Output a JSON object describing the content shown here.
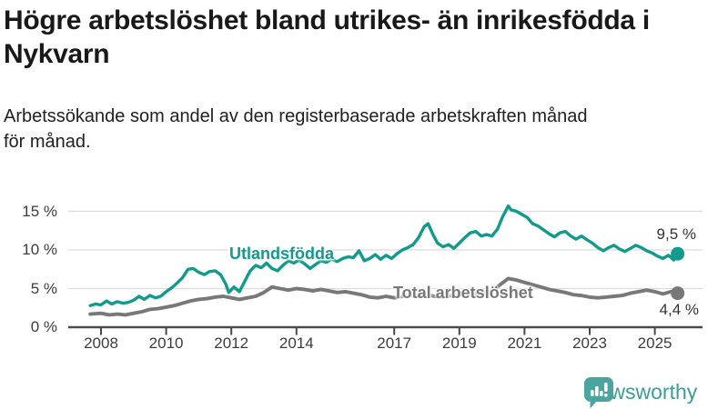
{
  "title": {
    "lines": [
      "Högre arbetslöshet bland utrikes- än inrikesfödda i",
      "Nykvarn"
    ]
  },
  "subtitle": {
    "lines": [
      "Arbetssökande som andel av den registerbaserade arbetskraften månad",
      "för månad."
    ]
  },
  "chart_data": {
    "type": "line",
    "title": "Högre arbetslöshet bland utrikes- än inrikesfödda i Nykvarn",
    "subtitle": "Arbetssökande som andel av den registerbaserade arbetskraften månad för månad.",
    "unit": "%",
    "grid": true,
    "ylim": [
      0,
      16.5
    ],
    "xlim": [
      2007.5,
      2026.2
    ],
    "y_ticks": [
      {
        "value": 0,
        "label": "0 %"
      },
      {
        "value": 5,
        "label": "5 %"
      },
      {
        "value": 10,
        "label": "10 %"
      },
      {
        "value": 15,
        "label": "15 %"
      }
    ],
    "x_ticks": [
      {
        "year": 2008,
        "label": "2008"
      },
      {
        "year": 2010,
        "label": "2010"
      },
      {
        "year": 2012,
        "label": "2012"
      },
      {
        "year": 2014,
        "label": "2014"
      },
      {
        "year": 2017,
        "label": "2017"
      },
      {
        "year": 2019,
        "label": "2019"
      },
      {
        "year": 2021,
        "label": "2021"
      },
      {
        "year": 2023,
        "label": "2023"
      },
      {
        "year": 2025,
        "label": "2025"
      }
    ],
    "series": [
      {
        "name": "Utlandsfödda",
        "color": "#129a8c",
        "line_width": 3.4,
        "end_value": 9.5,
        "end_label": "9,5 %",
        "points": [
          [
            2007.67,
            2.8
          ],
          [
            2007.83,
            3.0
          ],
          [
            2008.0,
            2.9
          ],
          [
            2008.17,
            3.4
          ],
          [
            2008.33,
            3.0
          ],
          [
            2008.5,
            3.3
          ],
          [
            2008.67,
            3.1
          ],
          [
            2008.83,
            3.2
          ],
          [
            2009.0,
            3.5
          ],
          [
            2009.17,
            4.0
          ],
          [
            2009.33,
            3.6
          ],
          [
            2009.5,
            4.1
          ],
          [
            2009.67,
            3.8
          ],
          [
            2009.83,
            4.0
          ],
          [
            2010.0,
            4.6
          ],
          [
            2010.17,
            5.1
          ],
          [
            2010.33,
            5.7
          ],
          [
            2010.5,
            6.4
          ],
          [
            2010.67,
            7.5
          ],
          [
            2010.83,
            7.6
          ],
          [
            2011.0,
            7.1
          ],
          [
            2011.17,
            6.8
          ],
          [
            2011.33,
            7.2
          ],
          [
            2011.5,
            7.3
          ],
          [
            2011.67,
            6.8
          ],
          [
            2011.83,
            5.6
          ],
          [
            2011.92,
            4.5
          ],
          [
            2012.08,
            5.2
          ],
          [
            2012.25,
            4.6
          ],
          [
            2012.42,
            6.0
          ],
          [
            2012.58,
            7.3
          ],
          [
            2012.75,
            8.0
          ],
          [
            2012.92,
            7.7
          ],
          [
            2013.08,
            8.3
          ],
          [
            2013.25,
            7.6
          ],
          [
            2013.42,
            7.3
          ],
          [
            2013.58,
            8.0
          ],
          [
            2013.75,
            8.6
          ],
          [
            2013.92,
            8.3
          ],
          [
            2014.08,
            8.7
          ],
          [
            2014.25,
            8.2
          ],
          [
            2014.42,
            7.6
          ],
          [
            2014.58,
            8.1
          ],
          [
            2014.75,
            8.6
          ],
          [
            2014.92,
            8.4
          ],
          [
            2015.08,
            8.8
          ],
          [
            2015.25,
            8.5
          ],
          [
            2015.42,
            8.9
          ],
          [
            2015.58,
            9.1
          ],
          [
            2015.75,
            9.0
          ],
          [
            2015.92,
            9.9
          ],
          [
            2016.08,
            8.6
          ],
          [
            2016.25,
            8.9
          ],
          [
            2016.42,
            9.4
          ],
          [
            2016.58,
            8.8
          ],
          [
            2016.75,
            9.3
          ],
          [
            2016.92,
            8.9
          ],
          [
            2017.08,
            9.5
          ],
          [
            2017.25,
            10.0
          ],
          [
            2017.42,
            10.3
          ],
          [
            2017.58,
            10.7
          ],
          [
            2017.75,
            11.6
          ],
          [
            2017.92,
            13.0
          ],
          [
            2018.04,
            13.4
          ],
          [
            2018.2,
            11.9
          ],
          [
            2018.33,
            10.9
          ],
          [
            2018.5,
            10.4
          ],
          [
            2018.67,
            10.7
          ],
          [
            2018.83,
            10.2
          ],
          [
            2019.0,
            10.9
          ],
          [
            2019.17,
            11.6
          ],
          [
            2019.33,
            12.2
          ],
          [
            2019.5,
            12.4
          ],
          [
            2019.67,
            11.8
          ],
          [
            2019.83,
            12.0
          ],
          [
            2020.0,
            11.8
          ],
          [
            2020.17,
            12.7
          ],
          [
            2020.33,
            14.3
          ],
          [
            2020.5,
            15.7
          ],
          [
            2020.58,
            15.2
          ],
          [
            2020.75,
            15.0
          ],
          [
            2020.92,
            14.6
          ],
          [
            2021.08,
            14.2
          ],
          [
            2021.25,
            13.4
          ],
          [
            2021.42,
            13.1
          ],
          [
            2021.58,
            12.6
          ],
          [
            2021.75,
            12.1
          ],
          [
            2021.92,
            11.7
          ],
          [
            2022.08,
            12.2
          ],
          [
            2022.25,
            12.4
          ],
          [
            2022.42,
            11.8
          ],
          [
            2022.58,
            11.4
          ],
          [
            2022.75,
            11.8
          ],
          [
            2022.92,
            11.3
          ],
          [
            2023.08,
            10.9
          ],
          [
            2023.25,
            10.3
          ],
          [
            2023.42,
            9.9
          ],
          [
            2023.58,
            10.3
          ],
          [
            2023.75,
            10.6
          ],
          [
            2023.92,
            10.1
          ],
          [
            2024.08,
            9.8
          ],
          [
            2024.25,
            10.2
          ],
          [
            2024.42,
            10.6
          ],
          [
            2024.58,
            10.3
          ],
          [
            2024.75,
            9.9
          ],
          [
            2024.92,
            9.6
          ],
          [
            2025.08,
            9.2
          ],
          [
            2025.25,
            8.9
          ],
          [
            2025.42,
            9.3
          ],
          [
            2025.58,
            8.7
          ],
          [
            2025.7,
            9.5
          ]
        ]
      },
      {
        "name": "Total arbetslöshet",
        "color": "#787878",
        "line_width": 3.9,
        "end_value": 4.4,
        "end_label": "4,4 %",
        "points": [
          [
            2007.67,
            1.7
          ],
          [
            2008.0,
            1.8
          ],
          [
            2008.25,
            1.6
          ],
          [
            2008.5,
            1.7
          ],
          [
            2008.75,
            1.6
          ],
          [
            2009.0,
            1.8
          ],
          [
            2009.25,
            2.0
          ],
          [
            2009.5,
            2.3
          ],
          [
            2009.75,
            2.4
          ],
          [
            2010.0,
            2.6
          ],
          [
            2010.25,
            2.8
          ],
          [
            2010.5,
            3.1
          ],
          [
            2010.75,
            3.4
          ],
          [
            2011.0,
            3.6
          ],
          [
            2011.25,
            3.7
          ],
          [
            2011.5,
            3.9
          ],
          [
            2011.75,
            4.0
          ],
          [
            2012.0,
            3.8
          ],
          [
            2012.25,
            3.6
          ],
          [
            2012.5,
            3.8
          ],
          [
            2012.75,
            4.0
          ],
          [
            2013.0,
            4.5
          ],
          [
            2013.25,
            5.2
          ],
          [
            2013.5,
            5.0
          ],
          [
            2013.75,
            4.8
          ],
          [
            2014.0,
            5.0
          ],
          [
            2014.25,
            4.9
          ],
          [
            2014.5,
            4.7
          ],
          [
            2014.75,
            4.9
          ],
          [
            2015.0,
            4.7
          ],
          [
            2015.25,
            4.5
          ],
          [
            2015.5,
            4.6
          ],
          [
            2015.75,
            4.4
          ],
          [
            2016.0,
            4.2
          ],
          [
            2016.25,
            3.9
          ],
          [
            2016.5,
            3.8
          ],
          [
            2016.75,
            4.0
          ],
          [
            2017.0,
            3.8
          ],
          [
            2017.25,
            4.0
          ],
          [
            2017.5,
            4.1
          ],
          [
            2017.75,
            4.0
          ],
          [
            2018.0,
            4.2
          ],
          [
            2018.25,
            4.0
          ],
          [
            2018.5,
            3.9
          ],
          [
            2018.75,
            4.1
          ],
          [
            2019.0,
            4.2
          ],
          [
            2019.25,
            4.4
          ],
          [
            2019.5,
            4.3
          ],
          [
            2019.75,
            4.5
          ],
          [
            2020.0,
            4.6
          ],
          [
            2020.25,
            5.5
          ],
          [
            2020.5,
            6.3
          ],
          [
            2020.75,
            6.1
          ],
          [
            2021.0,
            5.8
          ],
          [
            2021.25,
            5.5
          ],
          [
            2021.5,
            5.2
          ],
          [
            2021.75,
            4.9
          ],
          [
            2022.0,
            4.7
          ],
          [
            2022.25,
            4.5
          ],
          [
            2022.5,
            4.2
          ],
          [
            2022.75,
            4.1
          ],
          [
            2023.0,
            3.9
          ],
          [
            2023.25,
            3.8
          ],
          [
            2023.5,
            3.9
          ],
          [
            2023.75,
            4.0
          ],
          [
            2024.0,
            4.1
          ],
          [
            2024.25,
            4.4
          ],
          [
            2024.5,
            4.6
          ],
          [
            2024.75,
            4.8
          ],
          [
            2025.0,
            4.6
          ],
          [
            2025.25,
            4.3
          ],
          [
            2025.5,
            4.6
          ],
          [
            2025.7,
            4.4
          ]
        ]
      }
    ],
    "colors": {
      "grid": "#dcdcdc",
      "axis": "#4a4a4a",
      "tick_text": "#3d3d3d",
      "annotation_text": "#333333"
    }
  },
  "branding": {
    "logo_text": "Newsworthy",
    "icon": "bar-chart-speech-bubble-icon",
    "icon_color": "#4aa59e",
    "text_color": "#3b9e97"
  }
}
